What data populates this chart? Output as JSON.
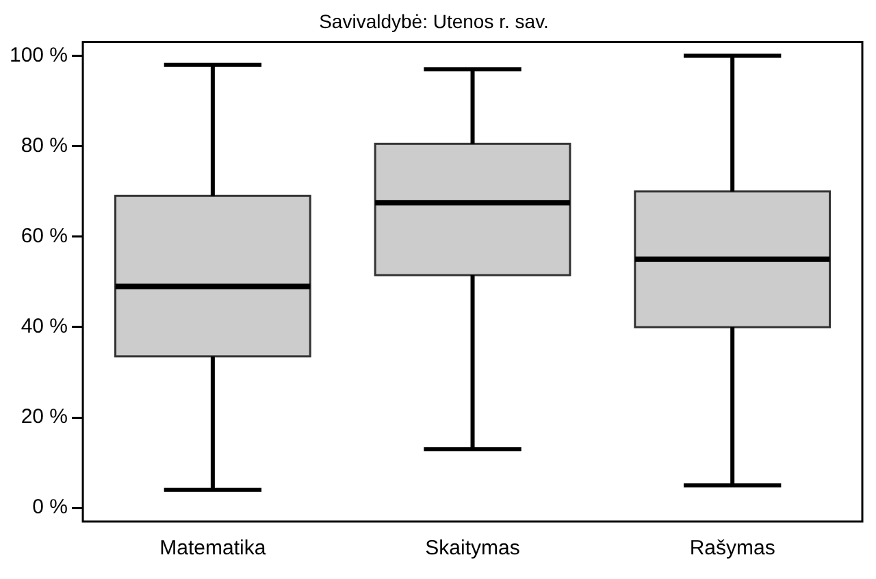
{
  "chart_data": {
    "type": "box",
    "title": "Savivaldybė: Utenos r. sav.",
    "categories": [
      "Matematika",
      "Skaitymas",
      "Rašymas"
    ],
    "color": "#cccccc",
    "boxes": [
      {
        "low": 4,
        "q1": 33.5,
        "median": 49,
        "q3": 69,
        "high": 98
      },
      {
        "low": 13,
        "q1": 51.5,
        "median": 67.5,
        "q3": 80.5,
        "high": 97
      },
      {
        "low": 5,
        "q1": 40,
        "median": 55,
        "q3": 70,
        "high": 100
      }
    ],
    "ylim": [
      -3,
      103
    ],
    "yticks": [
      {
        "value": 0,
        "label": "0 %"
      },
      {
        "value": 20,
        "label": "20 %"
      },
      {
        "value": 40,
        "label": "40 %"
      },
      {
        "value": 60,
        "label": "60 %"
      },
      {
        "value": 80,
        "label": "80 %"
      },
      {
        "value": 100,
        "label": "100 %"
      }
    ],
    "grid": false,
    "legend": false
  }
}
